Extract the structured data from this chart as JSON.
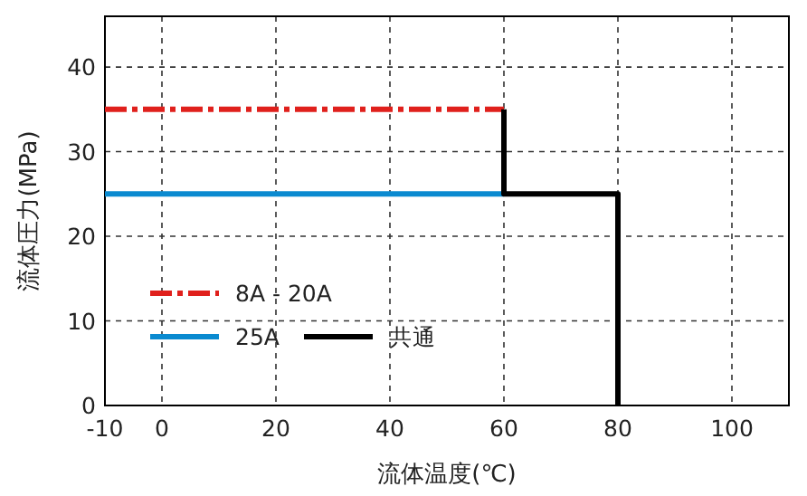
{
  "chart_data": {
    "type": "line",
    "xlabel": "流体温度(℃)",
    "ylabel": "流体圧力(MPa)",
    "xlim": [
      -10,
      110
    ],
    "ylim": [
      0,
      46
    ],
    "xticks": [
      -10,
      0,
      20,
      40,
      60,
      80,
      100
    ],
    "yticks": [
      0,
      10,
      20,
      30,
      40
    ],
    "grid": true,
    "legend": "bottom left",
    "series": [
      {
        "name": "8A - 20A",
        "color": "#e0201c",
        "line_style": "dashed",
        "x": [
          -10,
          60
        ],
        "values": [
          35,
          35
        ]
      },
      {
        "name": "25A",
        "color": "#0a8ad0",
        "line_style": "solid",
        "x": [
          -10,
          60
        ],
        "values": [
          25,
          25
        ]
      },
      {
        "name": "共通",
        "color": "#000000",
        "line_style": "solid",
        "x": [
          60,
          60,
          80,
          80
        ],
        "values": [
          35,
          25,
          25,
          0
        ]
      }
    ]
  }
}
